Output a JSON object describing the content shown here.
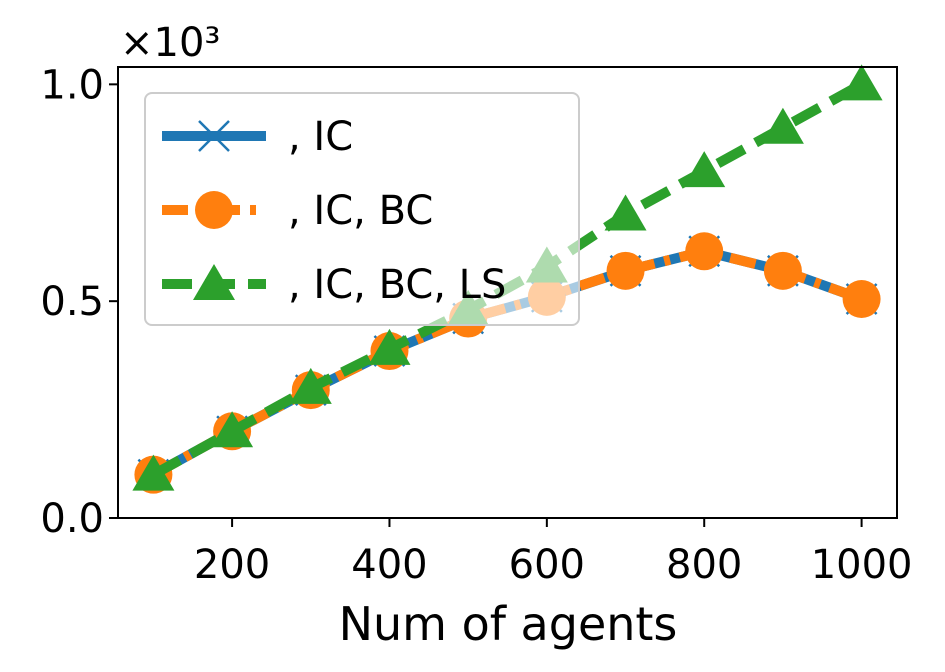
{
  "chart_data": {
    "type": "line",
    "xlabel": "Num of agents",
    "ylabel": "",
    "y_multiplier": "×10³",
    "xlim": [
      55,
      1045
    ],
    "ylim": [
      0,
      1.04
    ],
    "xticks": [
      200,
      400,
      600,
      800,
      1000
    ],
    "yticks": [
      0.0,
      0.5,
      1.0
    ],
    "xtick_labels": [
      "200",
      "400",
      "600",
      "800",
      "1000"
    ],
    "ytick_labels": [
      "0.0",
      "0.5",
      "1.0"
    ],
    "grid": false,
    "legend_position": "upper-left",
    "x": [
      100,
      200,
      300,
      400,
      500,
      600,
      700,
      800,
      900,
      1000
    ],
    "series": [
      {
        "name": ", IC",
        "color": "#1f77b4",
        "marker": "x",
        "dash": "solid",
        "values": [
          0.1,
          0.2,
          0.295,
          0.385,
          0.46,
          0.51,
          0.57,
          0.615,
          0.57,
          0.505
        ]
      },
      {
        "name": ", IC, BC",
        "color": "#ff7f0e",
        "marker": "circle",
        "dash": "dashdot",
        "values": [
          0.1,
          0.2,
          0.295,
          0.385,
          0.46,
          0.51,
          0.57,
          0.615,
          0.57,
          0.505
        ]
      },
      {
        "name": ", IC, BC, LS",
        "color": "#2ca02c",
        "marker": "triangle",
        "dash": "dashed",
        "values": [
          0.1,
          0.2,
          0.3,
          0.39,
          0.48,
          0.58,
          0.7,
          0.8,
          0.9,
          1.0
        ]
      }
    ]
  }
}
